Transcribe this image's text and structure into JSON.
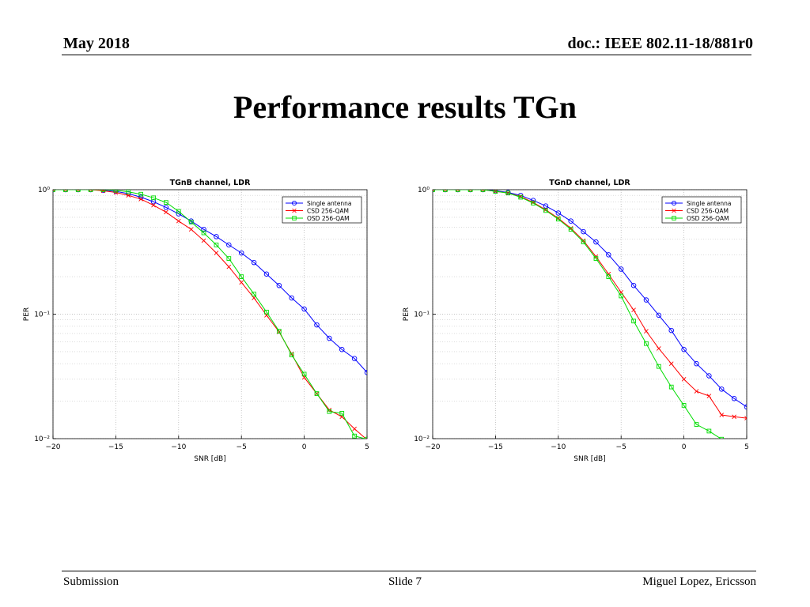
{
  "header": {
    "date": "May 2018",
    "doc": "doc.: IEEE 802.11-18/881r0"
  },
  "slide_title": "Performance results TGn",
  "footer": {
    "left": "Submission",
    "center": "Slide 7",
    "right": "Miguel Lopez, Ericsson"
  },
  "colors": {
    "single": "#0000ff",
    "csd": "#ff0000",
    "osd": "#00dd00"
  },
  "chart_data": [
    {
      "type": "line",
      "title": "TGnB channel, LDR",
      "xlabel": "SNR [dB]",
      "ylabel": "PER",
      "xlim": [
        -20,
        5
      ],
      "ylim": [
        0.01,
        1
      ],
      "yscale": "log",
      "grid": true,
      "legend_position": "top-right",
      "x_ticks": [
        "−20",
        "−15",
        "−10",
        "−5",
        "0",
        "5"
      ],
      "y_ticks": [
        "10⁰",
        "10⁻¹",
        "10⁻²"
      ],
      "x": [
        -20,
        -19,
        -18,
        -17,
        -16,
        -15,
        -14,
        -13,
        -12,
        -11,
        -10,
        -9,
        -8,
        -7,
        -6,
        -5,
        -4,
        -3,
        -2,
        -1,
        0,
        1,
        2,
        3,
        4,
        5
      ],
      "series": [
        {
          "name": "Single antenna",
          "marker": "circle",
          "color": "#0000ff",
          "values": [
            1,
            1,
            1,
            1,
            0.99,
            0.97,
            0.93,
            0.87,
            0.8,
            0.72,
            0.64,
            0.56,
            0.48,
            0.42,
            0.36,
            0.31,
            0.26,
            0.21,
            0.17,
            0.135,
            0.11,
            0.082,
            0.064,
            0.052,
            0.044,
            0.034
          ]
        },
        {
          "name": "CSD 256-QAM",
          "marker": "x",
          "color": "#ff0000",
          "values": [
            1,
            1,
            1,
            1,
            0.98,
            0.95,
            0.9,
            0.84,
            0.75,
            0.66,
            0.56,
            0.48,
            0.39,
            0.31,
            0.24,
            0.18,
            0.135,
            0.098,
            0.072,
            0.048,
            0.031,
            0.023,
            0.017,
            0.015,
            0.012,
            0.0098
          ]
        },
        {
          "name": "OSD 256-QAM",
          "marker": "square",
          "color": "#00dd00",
          "values": [
            1,
            1,
            1,
            1,
            1,
            0.99,
            0.96,
            0.92,
            0.86,
            0.79,
            0.67,
            0.55,
            0.45,
            0.36,
            0.28,
            0.2,
            0.145,
            0.104,
            0.073,
            0.047,
            0.033,
            0.023,
            0.0165,
            0.016,
            0.0105,
            0.0099
          ]
        }
      ]
    },
    {
      "type": "line",
      "title": "TGnD channel, LDR",
      "xlabel": "SNR [dB]",
      "ylabel": "PER",
      "xlim": [
        -20,
        5
      ],
      "ylim": [
        0.01,
        1
      ],
      "yscale": "log",
      "grid": true,
      "legend_position": "top-right",
      "x_ticks": [
        "−20",
        "−15",
        "−10",
        "−5",
        "0",
        "5"
      ],
      "y_ticks": [
        "10⁰",
        "10⁻¹",
        "10⁻²"
      ],
      "x": [
        -20,
        -19,
        -18,
        -17,
        -16,
        -15,
        -14,
        -13,
        -12,
        -11,
        -10,
        -9,
        -8,
        -7,
        -6,
        -5,
        -4,
        -3,
        -2,
        -1,
        0,
        1,
        2,
        3,
        4,
        5
      ],
      "series": [
        {
          "name": "Single antenna",
          "marker": "circle",
          "color": "#0000ff",
          "values": [
            1,
            1,
            1,
            1,
            1,
            0.98,
            0.95,
            0.9,
            0.82,
            0.74,
            0.65,
            0.56,
            0.46,
            0.38,
            0.3,
            0.23,
            0.17,
            0.13,
            0.098,
            0.074,
            0.052,
            0.04,
            0.032,
            0.025,
            0.021,
            0.018
          ]
        },
        {
          "name": "CSD 256-QAM",
          "marker": "x",
          "color": "#ff0000",
          "values": [
            1,
            1,
            1,
            1,
            1,
            0.97,
            0.94,
            0.88,
            0.79,
            0.69,
            0.59,
            0.49,
            0.39,
            0.29,
            0.21,
            0.15,
            0.108,
            0.073,
            0.053,
            0.04,
            0.03,
            0.024,
            0.022,
            0.0155,
            0.015,
            0.0146
          ]
        },
        {
          "name": "OSD 256-QAM",
          "marker": "square",
          "color": "#00dd00",
          "values": [
            1,
            1,
            1,
            1,
            1,
            0.97,
            0.94,
            0.87,
            0.78,
            0.68,
            0.58,
            0.48,
            0.38,
            0.28,
            0.2,
            0.14,
            0.088,
            0.058,
            0.038,
            0.026,
            0.0185,
            0.013,
            0.0115,
            0.0099,
            null,
            null
          ]
        }
      ]
    }
  ]
}
